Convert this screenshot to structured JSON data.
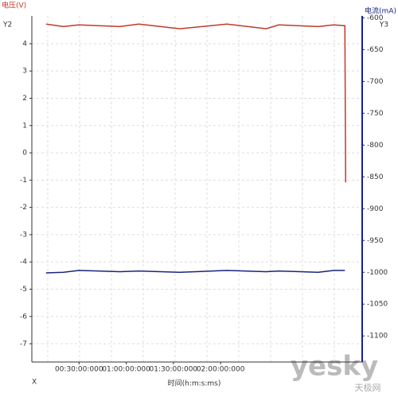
{
  "chart_data": {
    "type": "line",
    "y_title": "电压(V)",
    "y_axis_name": "Y2",
    "y2_title": "电流(mA)",
    "y2_axis_name": "Y3",
    "x_title": "时间(h:m:s:ms)",
    "x_axis_name": "X",
    "x": [
      9,
      20,
      30,
      56,
      68,
      94,
      124,
      149,
      157,
      182,
      192,
      199,
      199.5
    ],
    "xlim": [
      0,
      210
    ],
    "xticks": [
      {
        "value": 30,
        "label": "00:30:00:000"
      },
      {
        "value": 60,
        "label": "01:00:00:000"
      },
      {
        "value": 90,
        "label": "01:30:00:000"
      },
      {
        "value": 120,
        "label": "02:00:00:000"
      }
    ],
    "ylim": [
      -7.67,
      5.02
    ],
    "yticks": [
      4,
      3,
      2,
      1,
      0,
      -1,
      -2,
      -3,
      -4,
      -5,
      -6,
      -7
    ],
    "y2lim": [
      -1141,
      -597
    ],
    "y2ticks": [
      -600,
      -650,
      -700,
      -750,
      -800,
      -850,
      -900,
      -950,
      -1000,
      -1050,
      -1100
    ],
    "grid": true,
    "series": [
      {
        "name": "电压",
        "color": "#c0392b",
        "values": [
          4.72,
          4.63,
          4.69,
          4.63,
          4.72,
          4.55,
          4.72,
          4.55,
          4.69,
          4.63,
          4.69,
          4.66,
          -1.08
        ]
      },
      {
        "name": "电流",
        "color": "#1a237e",
        "axis": "y2",
        "values": [
          -1001,
          -1000,
          -997,
          -999,
          -998,
          -1000,
          -997,
          -999,
          -998,
          -1000,
          -997,
          -997,
          null
        ]
      }
    ]
  },
  "watermark": {
    "brand": "yesky",
    "site": "天极网"
  }
}
